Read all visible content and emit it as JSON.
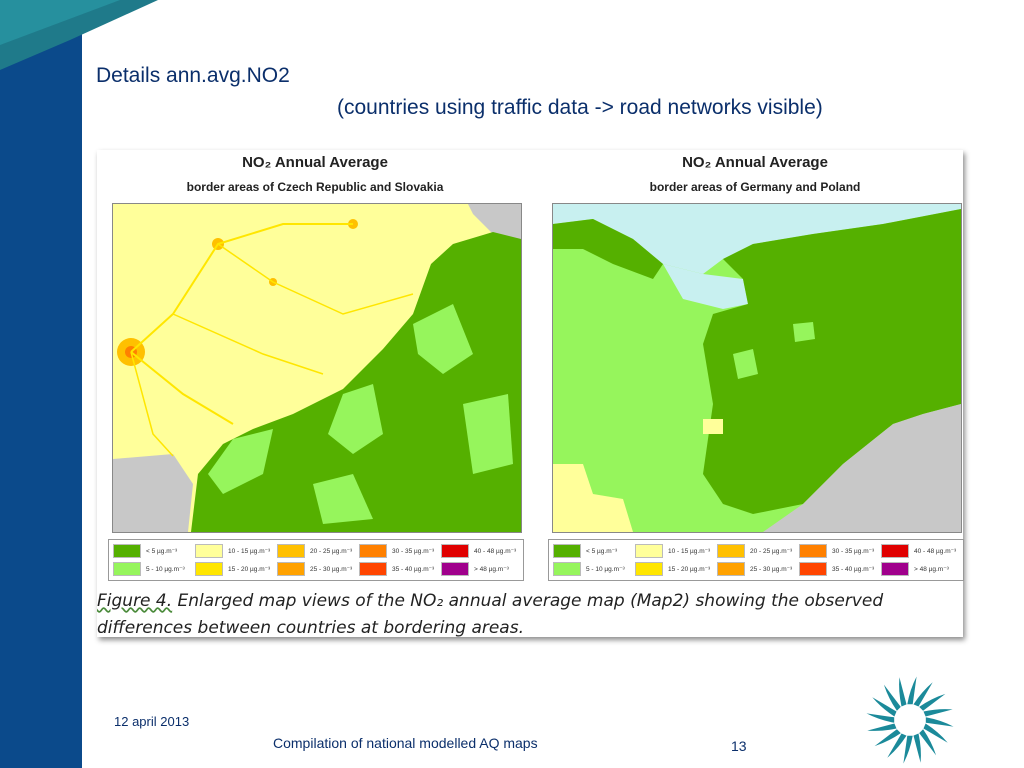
{
  "slide": {
    "title_line1": "Details ann.avg.NO2",
    "title_line2": "(countries using traffic data -> road networks visible)"
  },
  "figure": {
    "panels": [
      {
        "title": "NO₂ Annual Average",
        "subtitle": "border areas of Czech Republic and Slovakia"
      },
      {
        "title": "NO₂ Annual Average",
        "subtitle": "border areas of Germany and Poland"
      }
    ],
    "legend": [
      {
        "label": "< 5 µg.m⁻³",
        "color": "#55b000"
      },
      {
        "label": "5 - 10 µg.m⁻³",
        "color": "#96f55c"
      },
      {
        "label": "10 - 15 µg.m⁻³",
        "color": "#ffff9a"
      },
      {
        "label": "15 - 20 µg.m⁻³",
        "color": "#ffe600"
      },
      {
        "label": "20 - 25 µg.m⁻³",
        "color": "#ffc000"
      },
      {
        "label": "25 - 30 µg.m⁻³",
        "color": "#ffa200"
      },
      {
        "label": "30 - 35 µg.m⁻³",
        "color": "#ff8000"
      },
      {
        "label": "35 - 40 µg.m⁻³",
        "color": "#ff4500"
      },
      {
        "label": "40 - 48 µg.m⁻³",
        "color": "#e00000"
      },
      {
        "label": "> 48 µg.m⁻³",
        "color": "#a0008c"
      }
    ],
    "caption_lead": "Figure 4.",
    "caption_line1": " Enlarged map views of the NO₂ annual average map (Map2) showing the observed",
    "caption_line2": "differences between countries at bordering areas."
  },
  "footer": {
    "date": "12 april 2013",
    "title": "Compilation of national modelled AQ maps",
    "page": "13"
  },
  "colors": {
    "band": "#0b4a8b",
    "title": "#0b2f6b",
    "logo": "#1b8a9a"
  }
}
